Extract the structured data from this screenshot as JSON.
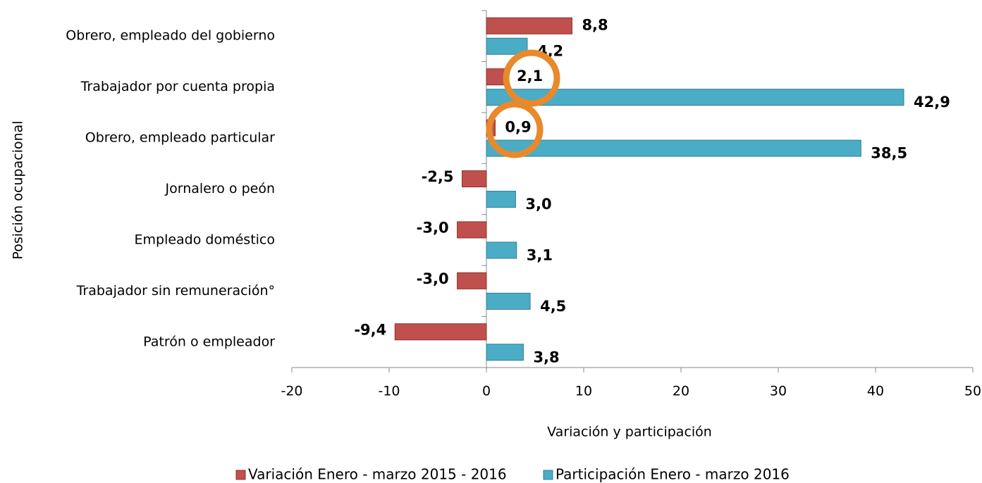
{
  "chart_data": {
    "type": "barh",
    "categories": [
      "Obrero, empleado del gobierno",
      "Trabajador por cuenta propia",
      "Obrero, empleado particular",
      "Jornalero o peón",
      "Empleado doméstico",
      "Trabajador sin remuneración°",
      "Patrón o empleador"
    ],
    "series": [
      {
        "name": "Variación Enero - marzo 2015 - 2016",
        "color": "#c0504d",
        "label_color": "#c00000",
        "values": [
          8.8,
          2.1,
          0.9,
          -2.5,
          -3.0,
          -3.0,
          -9.4
        ],
        "value_labels": [
          "8,8",
          "2,1",
          "0,9",
          "-2,5",
          "-3,0",
          "-3,0",
          "-9,4"
        ]
      },
      {
        "name": "Participación Enero - marzo 2016",
        "color": "#4bacc6",
        "label_color": "#1f3b5c",
        "values": [
          4.2,
          42.9,
          38.5,
          3.0,
          3.1,
          4.5,
          3.8
        ],
        "value_labels": [
          "4,2",
          "42,9",
          "38,5",
          "3,0",
          "3,1",
          "4,5",
          "3,8"
        ]
      }
    ],
    "xlim": [
      -20,
      50
    ],
    "xticks": [
      -20,
      -10,
      0,
      10,
      20,
      30,
      40,
      50
    ],
    "x_label": "Variación y participación",
    "y_label": "Posición ocupacional",
    "legend": "bottom"
  }
}
